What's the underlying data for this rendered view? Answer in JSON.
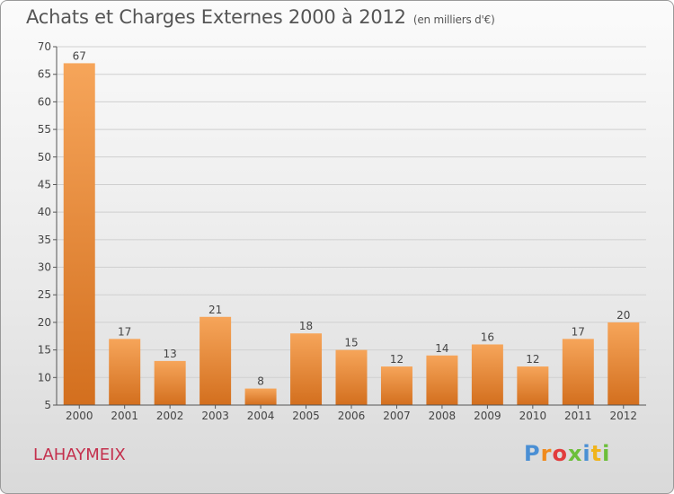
{
  "title": "Achats et Charges Externes 2000 à 2012",
  "subtitle": "(en milliers d'€)",
  "commune": "LAHAYMEIX",
  "logo": {
    "text": "Proxiti",
    "colors": [
      "#4a8fd4",
      "#f08a1c",
      "#e23c3c",
      "#6cbf3a",
      "#4a8fd4",
      "#f0b41c",
      "#6cbf3a"
    ]
  },
  "colors": {
    "bar_top": "#f6a55a",
    "bar_bottom": "#d36f1e",
    "grid": "#cfcfcf",
    "axis": "#555555"
  },
  "chart_data": {
    "type": "bar",
    "title": "Achats et Charges Externes 2000 à 2012",
    "categories": [
      "2000",
      "2001",
      "2002",
      "2003",
      "2004",
      "2005",
      "2006",
      "2007",
      "2008",
      "2009",
      "2010",
      "2011",
      "2012"
    ],
    "values": [
      67,
      17,
      13,
      21,
      8,
      18,
      15,
      12,
      14,
      16,
      12,
      17,
      20
    ],
    "ylim": [
      5,
      70
    ],
    "yticks": [
      5,
      10,
      15,
      20,
      25,
      30,
      35,
      40,
      45,
      50,
      55,
      60,
      65,
      70
    ],
    "grid": true,
    "data_labels": true,
    "xlabel": "",
    "ylabel": ""
  }
}
